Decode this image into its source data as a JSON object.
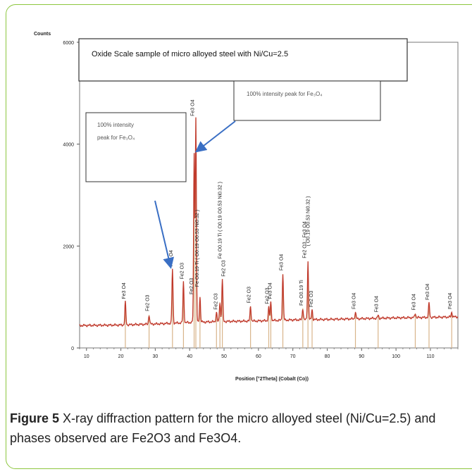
{
  "chart_data": {
    "type": "line",
    "ylabel": "Counts",
    "xlabel": "Position [°2Theta] (Cobalt (Co))",
    "xlim": [
      8,
      118
    ],
    "ylim": [
      0,
      6000
    ],
    "x_ticks": [
      10,
      20,
      30,
      40,
      50,
      60,
      70,
      80,
      90,
      100,
      110
    ],
    "y_ticks": [
      0,
      2000,
      4000,
      6000
    ],
    "series": [
      {
        "color": "#c0392b",
        "baseline": [
          [
            8,
            440
          ],
          [
            20,
            450
          ],
          [
            30,
            470
          ],
          [
            40,
            500
          ],
          [
            50,
            520
          ],
          [
            60,
            530
          ],
          [
            70,
            550
          ],
          [
            80,
            560
          ],
          [
            90,
            575
          ],
          [
            100,
            590
          ],
          [
            110,
            600
          ],
          [
            118,
            610
          ]
        ],
        "peaks": [
          {
            "x": 21.3,
            "y": 900
          },
          {
            "x": 28.2,
            "y": 650
          },
          {
            "x": 35.0,
            "y": 1550
          },
          {
            "x": 38.2,
            "y": 1300
          },
          {
            "x": 41.3,
            "y": 3800
          },
          {
            "x": 41.8,
            "y": 4500
          },
          {
            "x": 43.0,
            "y": 1000
          },
          {
            "x": 47.8,
            "y": 700
          },
          {
            "x": 48.8,
            "y": 900
          },
          {
            "x": 49.5,
            "y": 1350
          },
          {
            "x": 57.7,
            "y": 820
          },
          {
            "x": 63.0,
            "y": 800
          },
          {
            "x": 63.6,
            "y": 900
          },
          {
            "x": 67.1,
            "y": 1450
          },
          {
            "x": 72.9,
            "y": 780
          },
          {
            "x": 74.4,
            "y": 1700
          },
          {
            "x": 75.6,
            "y": 750
          },
          {
            "x": 88.2,
            "y": 700
          },
          {
            "x": 94.8,
            "y": 640
          },
          {
            "x": 105.6,
            "y": 680
          },
          {
            "x": 109.6,
            "y": 880
          },
          {
            "x": 116.2,
            "y": 700
          }
        ]
      }
    ],
    "peak_labels": [
      {
        "x": 21.3,
        "y": 960,
        "text": "Fe3 O4"
      },
      {
        "x": 28.2,
        "y": 720,
        "text": "Fe2 O3"
      },
      {
        "x": 35.0,
        "y": 1600,
        "text": "Fe3 O4"
      },
      {
        "x": 38.2,
        "y": 1350,
        "text": "Fe2 O3"
      },
      {
        "x": 41.0,
        "y": 1050,
        "text": "Fe2 O3"
      },
      {
        "x": 42.6,
        "y": 1200,
        "text": "Fe O0.19 Ti ( O0.19 O0.53 Ni0.32 )"
      },
      {
        "x": 41.3,
        "y": 4550,
        "text": "Fe3 O4"
      },
      {
        "x": 48.0,
        "y": 750,
        "text": "Fe2 O3"
      },
      {
        "x": 49.3,
        "y": 1750,
        "text": "Fe O0.19 Ti ( O0.19 O0.53 Ni0.32 )"
      },
      {
        "x": 50.3,
        "y": 1400,
        "text": "Fe2 O3"
      },
      {
        "x": 57.7,
        "y": 880,
        "text": "Fe2 O3"
      },
      {
        "x": 63.0,
        "y": 860,
        "text": "Fe2 O3"
      },
      {
        "x": 63.8,
        "y": 960,
        "text": "Fe3 O4"
      },
      {
        "x": 67.1,
        "y": 1520,
        "text": "Fe3 O4"
      },
      {
        "x": 72.9,
        "y": 830,
        "text": "Fe O0.19 Ti"
      },
      {
        "x": 73.9,
        "y": 1760,
        "text": "Fe2 O3 ; Fe3 O4"
      },
      {
        "x": 74.9,
        "y": 2000,
        "text": "( O0.19 O0.53 Ni0.32 )"
      },
      {
        "x": 75.8,
        "y": 800,
        "text": "Fe2 O3"
      },
      {
        "x": 88.2,
        "y": 760,
        "text": "Fe3 O4"
      },
      {
        "x": 94.8,
        "y": 700,
        "text": "Fe3 O4"
      },
      {
        "x": 105.6,
        "y": 740,
        "text": "Fe3 O4"
      },
      {
        "x": 109.6,
        "y": 940,
        "text": "Fe3 O4"
      },
      {
        "x": 116.2,
        "y": 760,
        "text": "Fe3 O4"
      }
    ],
    "annotations": {
      "title_box": "Oxide Scale sample of micro alloyed steel with Ni/Cu=2.5",
      "box_right": "100% intensity peak for Fe₃O₄",
      "box_left_line1": "100% intensity",
      "box_left_line2": "peak for Fe₃O₄"
    }
  },
  "caption": {
    "label": "Figure 5",
    "text": " X-ray diffraction pattern for the micro alloyed steel (Ni/Cu=2.5) and phases observed are Fe2O3 and Fe3O4."
  },
  "colors": {
    "border": "#8dc63f",
    "trace": "#c0392b",
    "peak": "#d8b48a",
    "arrow": "#3a6fc4"
  }
}
